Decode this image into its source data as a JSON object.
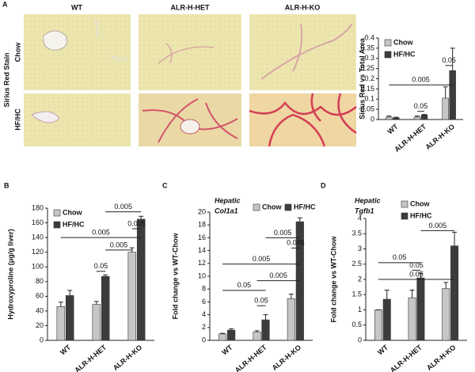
{
  "panel_labels": [
    "A",
    "B",
    "C",
    "D"
  ],
  "micrographs": {
    "title": "Sirius Red Stain",
    "columns": [
      "WT",
      "ALR-H-HET",
      "ALR-H-KO"
    ],
    "rows": [
      "Chow",
      "HF/HC"
    ]
  },
  "chart_data": [
    {
      "type": "bar",
      "ylabel": "Sirius Red vs Total Area",
      "categories": [
        "WT",
        "ALR-H-HET",
        "ALR-H-KO"
      ],
      "series": [
        {
          "name": "Chow",
          "color": "#c6c6c6",
          "values": [
            0.012,
            0.012,
            0.105
          ],
          "errors": [
            0.005,
            0.005,
            0.055
          ]
        },
        {
          "name": "HF/HC",
          "color": "#3c3c3c",
          "values": [
            0.008,
            0.022,
            0.24
          ],
          "errors": [
            0.003,
            0.003,
            0.11
          ]
        }
      ],
      "ylim": [
        0,
        0.4
      ],
      "yticks": [
        0,
        0.05,
        0.1,
        0.15,
        0.2,
        0.25,
        0.3,
        0.35,
        0.4
      ],
      "legend": "upper left",
      "annotations": [
        {
          "text": "0.005",
          "y": 0.17,
          "from": [
            0,
            0
          ],
          "to": [
            2,
            1
          ]
        },
        {
          "text": "0.05",
          "y": 0.04,
          "from": [
            1,
            0
          ],
          "to": [
            1,
            1
          ]
        },
        {
          "text": "0.05",
          "y": 0.265,
          "from": [
            2,
            0
          ],
          "to": [
            2,
            1
          ]
        }
      ]
    },
    {
      "type": "bar",
      "ylabel": "Hydroxyproline (μg/g liver)",
      "categories": [
        "WT",
        "ALR-H-HET",
        "ALR-H-KO"
      ],
      "series": [
        {
          "name": "Chow",
          "color": "#c6c6c6",
          "values": [
            46,
            49,
            120
          ],
          "errors": [
            6,
            4,
            6
          ]
        },
        {
          "name": "HF/HC",
          "color": "#3c3c3c",
          "values": [
            61,
            87,
            165
          ],
          "errors": [
            7,
            2,
            4
          ]
        }
      ],
      "ylim": [
        0,
        180
      ],
      "yticks": [
        0,
        20,
        40,
        60,
        80,
        100,
        120,
        140,
        160,
        180
      ],
      "legend": "upper left",
      "annotations": [
        {
          "text": "0.005",
          "y": 175,
          "from": [
            1,
            1
          ],
          "to": [
            2,
            1
          ]
        },
        {
          "text": "0.005",
          "y": 152,
          "from": [
            2,
            0
          ],
          "to": [
            2,
            1
          ]
        },
        {
          "text": "0.005",
          "y": 140,
          "from": [
            0,
            0
          ],
          "to": [
            2,
            1
          ]
        },
        {
          "text": "0.005",
          "y": 123,
          "from": [
            1,
            1
          ],
          "to": [
            2,
            0
          ]
        },
        {
          "text": "0.05",
          "y": 94,
          "from": [
            1,
            0
          ],
          "to": [
            1,
            1
          ]
        }
      ]
    },
    {
      "type": "bar",
      "title": [
        "Hepatic",
        "Col1a1"
      ],
      "ylabel": "Fold change vs WT-Chow",
      "categories": [
        "WT",
        "ALR-H-HET",
        "ALR-H-KO"
      ],
      "series": [
        {
          "name": "Chow",
          "color": "#c6c6c6",
          "values": [
            1,
            1.3,
            6.5
          ],
          "errors": [
            0.1,
            0.2,
            0.7
          ]
        },
        {
          "name": "HF/HC",
          "color": "#3c3c3c",
          "values": [
            1.6,
            3.2,
            18.5
          ],
          "errors": [
            0.2,
            0.8,
            0.6
          ]
        }
      ],
      "ylim": [
        0,
        20
      ],
      "yticks": [
        0,
        2,
        4,
        6,
        8,
        10,
        12,
        14,
        16,
        18,
        20
      ],
      "legend": "top",
      "annotations": [
        {
          "text": "0.005",
          "y": 16,
          "from": [
            1,
            1
          ],
          "to": [
            2,
            1
          ]
        },
        {
          "text": "0.005",
          "y": 14.4,
          "from": [
            2,
            0
          ],
          "to": [
            2,
            1
          ]
        },
        {
          "text": "0.005",
          "y": 11.9,
          "from": [
            0,
            0
          ],
          "to": [
            2,
            1
          ]
        },
        {
          "text": "0.005",
          "y": 9.3,
          "from": [
            1,
            0
          ],
          "to": [
            2,
            1
          ]
        },
        {
          "text": "0.05",
          "y": 7.8,
          "from": [
            0,
            0
          ],
          "to": [
            1,
            1
          ]
        },
        {
          "text": "0.05",
          "y": 5.4,
          "from": [
            1,
            0
          ],
          "to": [
            1,
            1
          ]
        }
      ]
    },
    {
      "type": "bar",
      "title": [
        "Hepatic",
        "Tgfb1"
      ],
      "ylabel": "Fold change vs WT-Chow",
      "categories": [
        "WT",
        "ALR-H-HET",
        "ALR-H-KO"
      ],
      "series": [
        {
          "name": "Chow",
          "color": "#c6c6c6",
          "values": [
            1,
            1.4,
            1.7
          ],
          "errors": [
            0,
            0.25,
            0.2
          ]
        },
        {
          "name": "HF/HC",
          "color": "#3c3c3c",
          "values": [
            1.35,
            2.05,
            3.1
          ],
          "errors": [
            0.3,
            0.15,
            0.45
          ]
        }
      ],
      "ylim": [
        0,
        4
      ],
      "yticks": [
        0,
        0.5,
        1,
        1.5,
        2,
        2.5,
        3,
        3.5,
        4
      ],
      "legend": "upper right",
      "annotations": [
        {
          "text": "0.005",
          "y": 3.6,
          "from": [
            1,
            1
          ],
          "to": [
            2,
            1
          ]
        },
        {
          "text": "0.05",
          "y": 2.55,
          "from": [
            0,
            0
          ],
          "to": [
            1,
            1
          ]
        },
        {
          "text": "0.05",
          "y": 2.3,
          "from": [
            1,
            0
          ],
          "to": [
            1,
            1
          ]
        },
        {
          "text": "0.05",
          "y": 2.0,
          "from": [
            0,
            0
          ],
          "to": [
            2,
            1
          ]
        }
      ]
    }
  ]
}
